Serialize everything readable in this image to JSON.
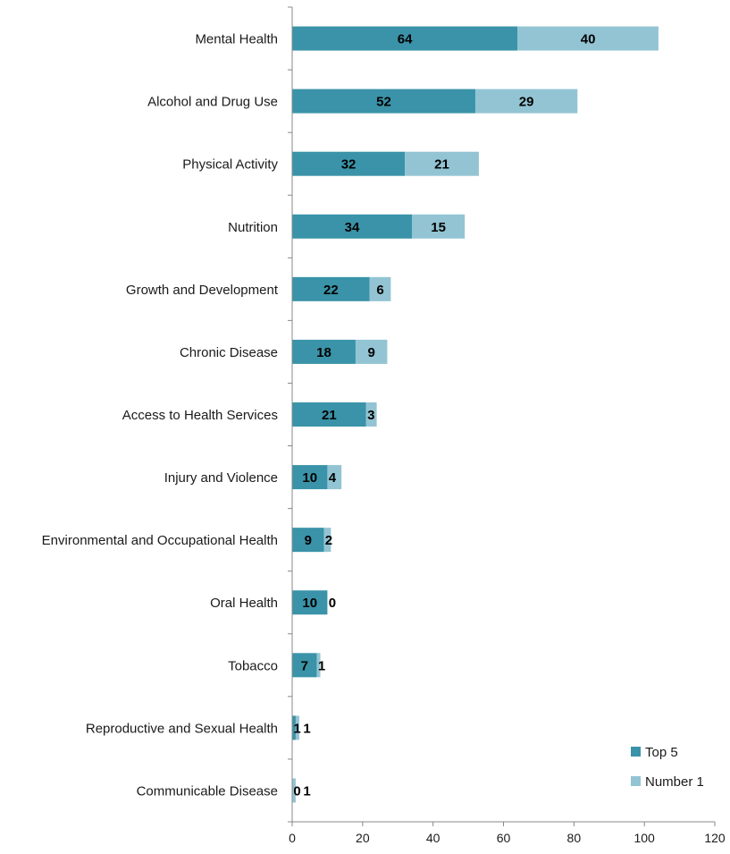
{
  "chart_data": {
    "type": "bar",
    "orientation": "horizontal",
    "stacked": true,
    "title": "",
    "xlabel": "",
    "ylabel": "",
    "xlim": [
      0,
      120
    ],
    "x_ticks": [
      0,
      20,
      40,
      60,
      80,
      100,
      120
    ],
    "grid": false,
    "legend_position": "bottom-right",
    "categories": [
      "Mental Health",
      "Alcohol and Drug Use",
      "Physical Activity",
      "Nutrition",
      "Growth and Development",
      "Chronic Disease",
      "Access to Health Services",
      "Injury and Violence",
      "Environmental and Occupational Health",
      "Oral Health",
      "Tobacco",
      "Reproductive and Sexual Health",
      "Communicable Disease"
    ],
    "series": [
      {
        "name": "Top 5",
        "color": "#3a93a8",
        "values": [
          64,
          52,
          32,
          34,
          22,
          18,
          21,
          10,
          9,
          10,
          7,
          1,
          0
        ]
      },
      {
        "name": "Number 1",
        "color": "#93c4d3",
        "values": [
          40,
          29,
          21,
          15,
          6,
          9,
          3,
          4,
          2,
          0,
          1,
          1,
          1
        ]
      }
    ]
  }
}
